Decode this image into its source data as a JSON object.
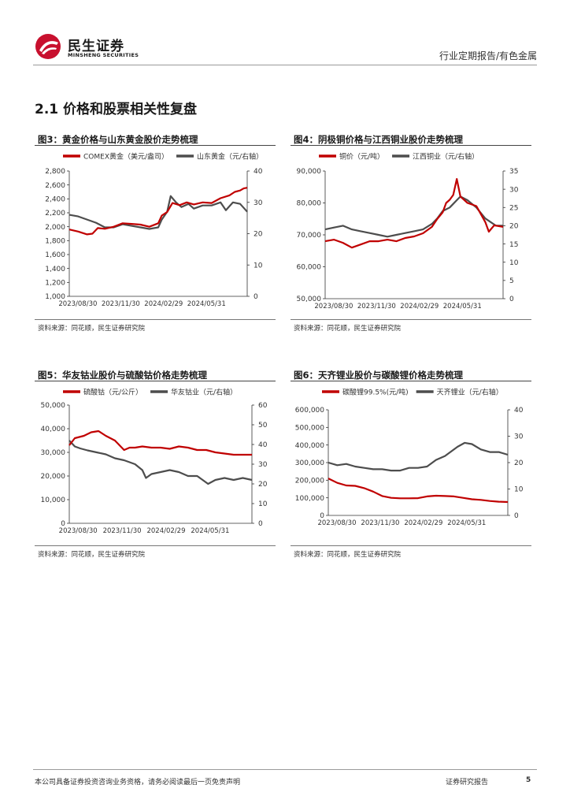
{
  "header": {
    "brand_cn": "民生证券",
    "brand_en": "MINSHENG SECURITIES",
    "category": "行业定期报告/有色金属"
  },
  "section_title": "2.1 价格和股票相关性复盘",
  "colors": {
    "red": "#c00000",
    "gray": "#4d4d4d",
    "brand_red": "#c8102e"
  },
  "figures": [
    {
      "title": "图3：黄金价格与山东黄金股价走势梳理",
      "source": "资料来源：同花顺，民生证券研究院",
      "chart_data": {
        "type": "line",
        "title": "图3：黄金价格与山东黄金股价走势梳理",
        "x_ticks": [
          "2023/08/30",
          "2023/11/30",
          "2024/02/29",
          "2024/05/31"
        ],
        "left_axis": {
          "min": 1000,
          "max": 2800,
          "ticks": [
            "1,000",
            "1,200",
            "1,400",
            "1,600",
            "1,800",
            "2,000",
            "2,200",
            "2,400",
            "2,600",
            "2,800"
          ]
        },
        "right_axis": {
          "min": 0,
          "max": 40,
          "ticks": [
            "0",
            "10",
            "20",
            "30",
            "40"
          ]
        },
        "series": [
          {
            "name": "COMEX黄金（美元/盎司）",
            "axis": "left",
            "color": "#c00000",
            "x": [
              0,
              0.05,
              0.1,
              0.13,
              0.16,
              0.2,
              0.25,
              0.3,
              0.35,
              0.4,
              0.45,
              0.5,
              0.52,
              0.55,
              0.58,
              0.62,
              0.66,
              0.7,
              0.75,
              0.8,
              0.85,
              0.9,
              0.93,
              0.96,
              0.98,
              1.0
            ],
            "values": [
              1960,
              1930,
              1890,
              1900,
              1980,
              1970,
              2000,
              2050,
              2040,
              2030,
              2000,
              2050,
              2160,
              2210,
              2340,
              2310,
              2350,
              2320,
              2350,
              2340,
              2410,
              2450,
              2500,
              2520,
              2550,
              2560
            ]
          },
          {
            "name": "山东黄金（元/右轴）",
            "axis": "right",
            "color": "#4d4d4d",
            "x": [
              0,
              0.05,
              0.1,
              0.15,
              0.2,
              0.25,
              0.3,
              0.35,
              0.4,
              0.45,
              0.5,
              0.52,
              0.55,
              0.57,
              0.6,
              0.63,
              0.67,
              0.7,
              0.75,
              0.8,
              0.85,
              0.88,
              0.92,
              0.96,
              1.0
            ],
            "values": [
              26,
              25.5,
              24.5,
              23.5,
              22,
              22,
              23,
              22.5,
              22,
              21.5,
              22,
              24.5,
              27,
              32,
              30,
              28.5,
              29.5,
              28,
              29,
              29,
              30,
              27.5,
              30,
              29.5,
              27
            ]
          }
        ]
      }
    },
    {
      "title": "图4：阴极铜价格与江西铜业股价走势梳理",
      "source": "资料来源：同花顺，民生证券研究院",
      "chart_data": {
        "type": "line",
        "title": "图4：阴极铜价格与江西铜业股价走势梳理",
        "x_ticks": [
          "2023/08/30",
          "2023/11/30",
          "2024/02/29",
          "2024/05/31"
        ],
        "left_axis": {
          "min": 50000,
          "max": 90000,
          "ticks": [
            "50,000",
            "60,000",
            "70,000",
            "80,000",
            "90,000"
          ]
        },
        "right_axis": {
          "min": 0,
          "max": 35,
          "ticks": [
            "0",
            "5",
            "10",
            "15",
            "20",
            "25",
            "30",
            "35"
          ]
        },
        "series": [
          {
            "name": "铜价（元/吨）",
            "axis": "left",
            "color": "#c00000",
            "x": [
              0,
              0.05,
              0.1,
              0.15,
              0.2,
              0.25,
              0.3,
              0.35,
              0.4,
              0.45,
              0.5,
              0.55,
              0.6,
              0.63,
              0.66,
              0.68,
              0.7,
              0.72,
              0.74,
              0.76,
              0.8,
              0.85,
              0.88,
              0.9,
              0.92,
              0.95,
              1.0
            ],
            "values": [
              68000,
              68500,
              67500,
              66000,
              67000,
              68000,
              68000,
              68500,
              68000,
              69000,
              69500,
              70500,
              72500,
              75000,
              77000,
              80000,
              81000,
              82500,
              87500,
              82000,
              80000,
              79000,
              76000,
              74000,
              71000,
              73000,
              72500
            ]
          },
          {
            "name": "江西铜业（元/右轴）",
            "axis": "right",
            "color": "#4d4d4d",
            "x": [
              0,
              0.05,
              0.1,
              0.15,
              0.2,
              0.25,
              0.3,
              0.35,
              0.4,
              0.45,
              0.5,
              0.55,
              0.6,
              0.63,
              0.66,
              0.7,
              0.72,
              0.74,
              0.76,
              0.8,
              0.85,
              0.9,
              0.93,
              0.96,
              1.0
            ],
            "values": [
              19,
              19.5,
              20,
              19,
              18.5,
              18,
              17.5,
              17,
              17.5,
              18,
              18.5,
              19,
              20.5,
              22,
              24,
              25,
              26,
              27,
              28,
              27,
              25,
              22,
              21,
              20,
              20
            ]
          }
        ]
      }
    },
    {
      "title": "图5：华友钴业股价与硫酸钴价格走势梳理",
      "source": "资料来源：同花顺，民生证券研究院",
      "chart_data": {
        "type": "line",
        "title": "图5：华友钴业股价与硫酸钴价格走势梳理",
        "x_ticks": [
          "2023/08/30",
          "2023/11/30",
          "2024/02/29",
          "2024/05/31"
        ],
        "left_axis": {
          "min": 0,
          "max": 50000,
          "ticks": [
            "0",
            "10,000",
            "20,000",
            "30,000",
            "40,000",
            "50,000"
          ]
        },
        "right_axis": {
          "min": 0,
          "max": 60,
          "ticks": [
            "0",
            "10",
            "20",
            "30",
            "40",
            "50",
            "60"
          ]
        },
        "series": [
          {
            "name": "硫酸钴（元/公斤）",
            "axis": "left",
            "color": "#c00000",
            "x": [
              0,
              0.03,
              0.08,
              0.12,
              0.16,
              0.2,
              0.25,
              0.3,
              0.33,
              0.36,
              0.4,
              0.45,
              0.5,
              0.55,
              0.6,
              0.65,
              0.7,
              0.75,
              0.8,
              0.85,
              0.9,
              0.95,
              1.0
            ],
            "values": [
              33000,
              36000,
              37000,
              38500,
              39000,
              37000,
              35000,
              31000,
              32000,
              32000,
              32500,
              32000,
              32000,
              31500,
              32500,
              32000,
              31000,
              31000,
              30000,
              29500,
              29000,
              29000,
              29000
            ]
          },
          {
            "name": "华友钴业（元/右轴）",
            "axis": "right",
            "color": "#4d4d4d",
            "x": [
              0,
              0.03,
              0.06,
              0.1,
              0.15,
              0.2,
              0.25,
              0.3,
              0.33,
              0.36,
              0.4,
              0.42,
              0.45,
              0.5,
              0.55,
              0.6,
              0.65,
              0.7,
              0.73,
              0.76,
              0.8,
              0.85,
              0.9,
              0.95,
              1.0
            ],
            "values": [
              42,
              39,
              38,
              37,
              36,
              35,
              33,
              32,
              31,
              30,
              27,
              23,
              25,
              26,
              27,
              26,
              24,
              24,
              22,
              20,
              22,
              23,
              22,
              23,
              22
            ]
          }
        ]
      }
    },
    {
      "title": "图6：天齐锂业股价与碳酸锂价格走势梳理",
      "source": "资料来源：同花顺，民生证券研究院",
      "chart_data": {
        "type": "line",
        "title": "图6：天齐锂业股价与碳酸锂价格走势梳理",
        "x_ticks": [
          "2023/08/30",
          "2023/11/30",
          "2024/02/29",
          "2024/05/31"
        ],
        "left_axis": {
          "min": 0,
          "max": 600000,
          "ticks": [
            "0",
            "100,000",
            "200,000",
            "300,000",
            "400,000",
            "500,000",
            "600,000"
          ]
        },
        "right_axis": {
          "min": 0,
          "max": 40,
          "ticks": [
            "0",
            "10",
            "20",
            "30",
            "40"
          ]
        },
        "series": [
          {
            "name": "碳酸锂99.5%(元/吨)",
            "axis": "left",
            "color": "#c00000",
            "x": [
              0,
              0.05,
              0.1,
              0.15,
              0.2,
              0.25,
              0.3,
              0.35,
              0.4,
              0.45,
              0.5,
              0.55,
              0.6,
              0.65,
              0.7,
              0.75,
              0.8,
              0.85,
              0.9,
              0.95,
              1.0
            ],
            "values": [
              210000,
              185000,
              170000,
              168000,
              155000,
              135000,
              110000,
              100000,
              97000,
              97000,
              98000,
              108000,
              112000,
              110000,
              108000,
              100000,
              92000,
              88000,
              82000,
              78000,
              76000
            ]
          },
          {
            "name": "天齐锂业（元/右轴）",
            "axis": "right",
            "color": "#4d4d4d",
            "x": [
              0,
              0.05,
              0.1,
              0.15,
              0.2,
              0.25,
              0.3,
              0.35,
              0.4,
              0.45,
              0.5,
              0.55,
              0.6,
              0.65,
              0.68,
              0.72,
              0.76,
              0.8,
              0.85,
              0.9,
              0.95,
              1.0
            ],
            "values": [
              20,
              19,
              19.5,
              18.5,
              18,
              17.5,
              17.5,
              17,
              17,
              18,
              18,
              18.5,
              21,
              22.5,
              24,
              26,
              27.5,
              27,
              25,
              24,
              24,
              23
            ]
          }
        ]
      }
    }
  ],
  "footer": {
    "disclaimer": "本公司具备证券投资咨询业务资格，请务必阅读最后一页免责声明",
    "report_type": "证券研究报告",
    "page": "5"
  }
}
